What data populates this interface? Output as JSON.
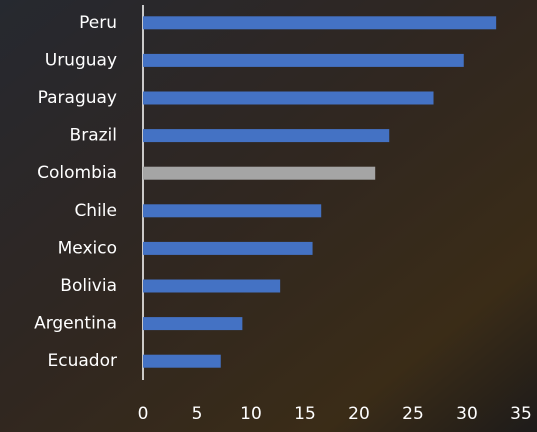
{
  "chart_data": {
    "type": "bar",
    "orientation": "horizontal",
    "categories": [
      "Peru",
      "Uruguay",
      "Paraguay",
      "Brazil",
      "Colombia",
      "Chile",
      "Mexico",
      "Bolivia",
      "Argentina",
      "Ecuador"
    ],
    "values": [
      32.7,
      29.7,
      26.9,
      22.8,
      21.5,
      16.5,
      15.7,
      12.7,
      9.2,
      7.2
    ],
    "colors": [
      "#4472c4",
      "#4472c4",
      "#4472c4",
      "#4472c4",
      "#a5a5a5",
      "#4472c4",
      "#4472c4",
      "#4472c4",
      "#4472c4",
      "#4472c4"
    ],
    "xlim": [
      0,
      35
    ],
    "xticks": [
      0,
      5,
      10,
      15,
      20,
      25,
      30,
      35
    ],
    "grid": false
  }
}
